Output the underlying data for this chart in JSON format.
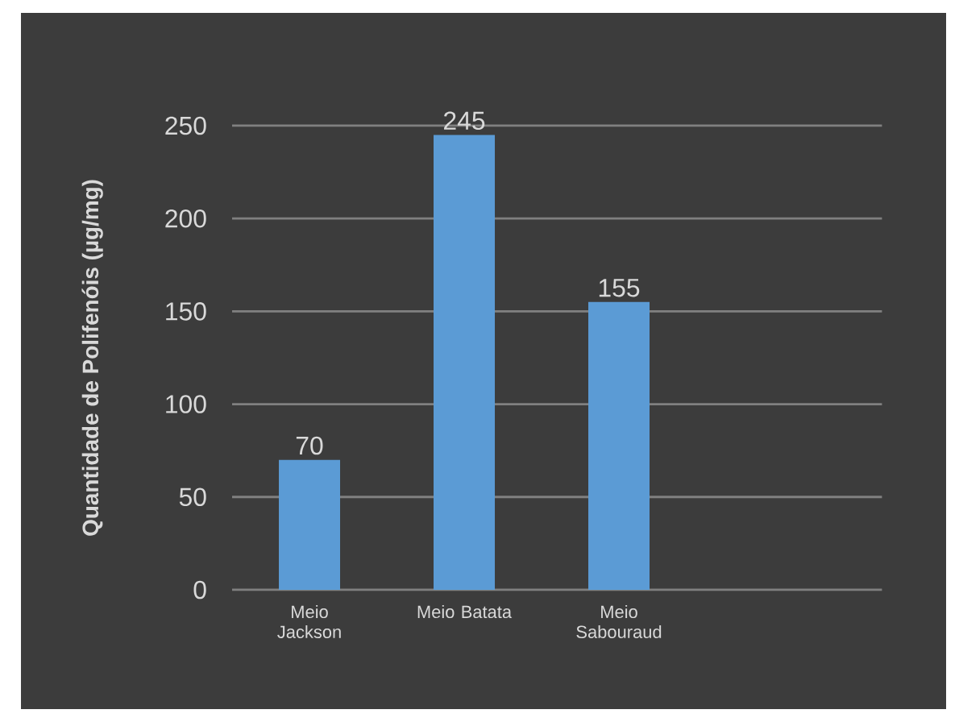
{
  "chart_data": {
    "type": "bar",
    "ylabel": "Quantidade de Polifenóis (µg/mg)",
    "categories": [
      "Meio Jackson",
      "Meio Batata",
      "Meio Sabouraud"
    ],
    "values": [
      70,
      245,
      155
    ],
    "color": "#5b9bd5",
    "ylim": [
      0,
      250
    ],
    "yticks": [
      0,
      50,
      100,
      150,
      200,
      250
    ],
    "grid": "y",
    "data_labels": true
  }
}
